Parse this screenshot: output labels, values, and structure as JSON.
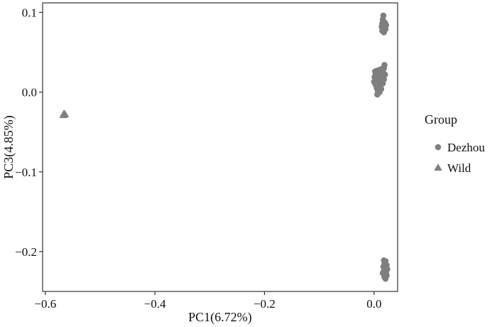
{
  "chart_data": {
    "type": "scatter",
    "xlabel": "PC1(6.72%)",
    "ylabel": "PC3(4.85%)",
    "xlim": [
      -0.605,
      0.043
    ],
    "ylim": [
      -0.25,
      0.112
    ],
    "x_ticks": [
      -0.6,
      -0.4,
      -0.2,
      0.0
    ],
    "x_tick_labels": [
      "−0.6",
      "−0.4",
      "−0.2",
      "0.0"
    ],
    "y_ticks": [
      -0.2,
      -0.1,
      0.0,
      0.1
    ],
    "y_tick_labels": [
      "−0.2",
      "−0.1",
      "0.0",
      "0.1"
    ],
    "grid": false,
    "legend": {
      "title": "Group",
      "position": "right"
    },
    "series": [
      {
        "name": "Dezhou",
        "marker": "circle",
        "color": "#7f7f7f",
        "points": [
          [
            0.017,
            0.096
          ],
          [
            0.016,
            0.091
          ],
          [
            0.018,
            0.088
          ],
          [
            0.015,
            0.086
          ],
          [
            0.02,
            0.087
          ],
          [
            0.017,
            0.083
          ],
          [
            0.022,
            0.084
          ],
          [
            0.014,
            0.082
          ],
          [
            0.019,
            0.08
          ],
          [
            0.016,
            0.078
          ],
          [
            0.021,
            0.079
          ],
          [
            0.018,
            0.075
          ],
          [
            0.015,
            0.077
          ],
          [
            0.019,
            0.034
          ],
          [
            0.018,
            0.03
          ],
          [
            0.014,
            0.029
          ],
          [
            0.01,
            0.028
          ],
          [
            0.006,
            0.027
          ],
          [
            0.002,
            0.026
          ],
          [
            0.005,
            0.024
          ],
          [
            0.009,
            0.024
          ],
          [
            0.013,
            0.025
          ],
          [
            0.017,
            0.024
          ],
          [
            0.02,
            0.022
          ],
          [
            0.003,
            0.022
          ],
          [
            0.007,
            0.021
          ],
          [
            0.011,
            0.021
          ],
          [
            0.015,
            0.02
          ],
          [
            0.001,
            0.019
          ],
          [
            0.005,
            0.018
          ],
          [
            0.009,
            0.018
          ],
          [
            0.013,
            0.017
          ],
          [
            0.018,
            0.016
          ],
          [
            0.003,
            0.016
          ],
          [
            0.007,
            0.015
          ],
          [
            0.011,
            0.014
          ],
          [
            0.015,
            0.013
          ],
          [
            0.0,
            0.013
          ],
          [
            0.004,
            0.012
          ],
          [
            0.008,
            0.011
          ],
          [
            0.012,
            0.01
          ],
          [
            0.016,
            0.011
          ],
          [
            0.003,
            0.009
          ],
          [
            0.007,
            0.008
          ],
          [
            0.011,
            0.007
          ],
          [
            0.005,
            0.005
          ],
          [
            0.009,
            0.004
          ],
          [
            0.013,
            0.004
          ],
          [
            0.007,
            0.001
          ],
          [
            0.01,
            0.0
          ],
          [
            0.006,
            -0.003
          ],
          [
            0.018,
            -0.211
          ],
          [
            0.021,
            -0.212
          ],
          [
            0.019,
            -0.216
          ],
          [
            0.023,
            -0.217
          ],
          [
            0.017,
            -0.219
          ],
          [
            0.021,
            -0.221
          ],
          [
            0.024,
            -0.222
          ],
          [
            0.018,
            -0.224
          ],
          [
            0.022,
            -0.226
          ],
          [
            0.016,
            -0.227
          ],
          [
            0.02,
            -0.229
          ],
          [
            0.023,
            -0.23
          ],
          [
            0.019,
            -0.232
          ],
          [
            0.021,
            -0.234
          ]
        ]
      },
      {
        "name": "Wild",
        "marker": "triangle",
        "color": "#7f7f7f",
        "points": [
          [
            -0.566,
            -0.027
          ],
          [
            -0.564,
            -0.028
          ],
          [
            -0.567,
            -0.029
          ]
        ]
      }
    ]
  }
}
